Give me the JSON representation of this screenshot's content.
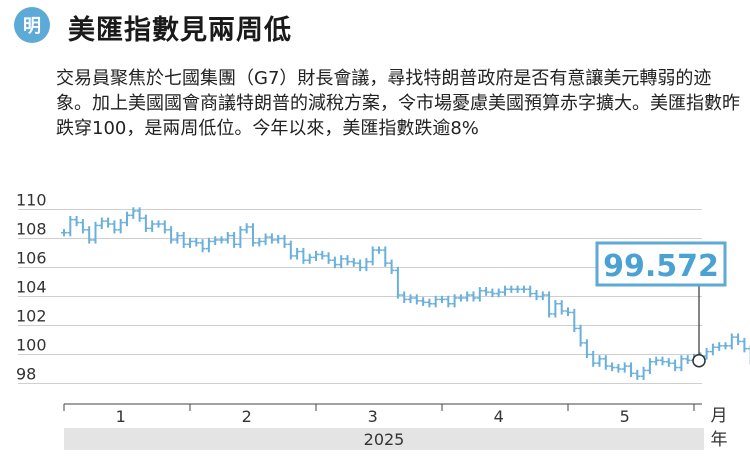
{
  "header": {
    "badge": "明",
    "title": "美匯指數見兩周低"
  },
  "summary": "交易員聚焦於七國集團（G7）財長會議，尋找特朗普政府是否有意讓美元轉弱的迹象。加上美國國會商議特朗普的減稅方案，令市場憂慮美國預算赤字擴大。美匯指數昨跌穿100，是兩周低位。今年以來，美匯指數跌逾8%",
  "colors": {
    "series": "#6ab0dc",
    "callout_border": "#5da9d8",
    "callout_text": "#4aa2d4",
    "year_band": "#e4e4e4",
    "badge": "#5da9d8"
  },
  "chart_data": {
    "type": "line",
    "style": "ohlc-sticks",
    "y_ticks": [
      "110",
      "108",
      "106",
      "104",
      "102",
      "100",
      "98"
    ],
    "ylim": [
      97,
      111
    ],
    "x_ticks": [
      "1",
      "2",
      "3",
      "4",
      "5"
    ],
    "x_unit_top": "月",
    "x_unit_bottom": "年",
    "year_label": "2025",
    "last_value_label": "99.572",
    "last_value": 99.572,
    "x_month": [
      0.05,
      0.1,
      0.15,
      0.2,
      0.25,
      0.3,
      0.35,
      0.4,
      0.45,
      0.5,
      0.55,
      0.6,
      0.65,
      0.7,
      0.75,
      0.8,
      0.85,
      0.9,
      0.95,
      1.0,
      1.05,
      1.1,
      1.15,
      1.2,
      1.25,
      1.3,
      1.35,
      1.4,
      1.45,
      1.5,
      1.55,
      1.6,
      1.65,
      1.7,
      1.75,
      1.8,
      1.85,
      1.9,
      1.95,
      2.0,
      2.05,
      2.1,
      2.15,
      2.2,
      2.25,
      2.3,
      2.35,
      2.4,
      2.45,
      2.5,
      2.55,
      2.6,
      2.65,
      2.7,
      2.75,
      2.8,
      2.85,
      2.9,
      2.95,
      3.0,
      3.05,
      3.1,
      3.15,
      3.2,
      3.25,
      3.3,
      3.35,
      3.4,
      3.45,
      3.5,
      3.55,
      3.6,
      3.65,
      3.7,
      3.75,
      3.8,
      3.85,
      3.9,
      3.95,
      4.0,
      4.05,
      4.1,
      4.15,
      4.2,
      4.25,
      4.3,
      4.35,
      4.4,
      4.45,
      4.5,
      4.55,
      4.6,
      4.65,
      4.7,
      4.75,
      4.8,
      4.85,
      4.9,
      4.95,
      5.0,
      5.05,
      5.1,
      5.15,
      5.2,
      5.25,
      5.3,
      5.35,
      5.4,
      5.45,
      5.5
    ],
    "values": [
      108.4,
      109.3,
      109.1,
      108.6,
      107.9,
      108.9,
      109.2,
      109.0,
      108.6,
      109.1,
      109.6,
      109.9,
      109.4,
      108.7,
      109.0,
      109.0,
      108.6,
      107.9,
      108.2,
      107.6,
      107.8,
      107.7,
      107.3,
      107.8,
      107.9,
      107.9,
      108.2,
      107.6,
      108.6,
      108.8,
      107.7,
      107.8,
      108.1,
      107.9,
      108.0,
      107.6,
      106.8,
      107.1,
      106.5,
      106.7,
      106.9,
      106.8,
      106.5,
      106.2,
      106.6,
      106.4,
      106.3,
      106.0,
      106.4,
      107.2,
      107.2,
      106.3,
      105.8,
      104.1,
      103.8,
      103.9,
      103.7,
      103.6,
      103.5,
      103.8,
      103.8,
      103.5,
      103.9,
      103.9,
      104.1,
      103.9,
      104.4,
      104.3,
      104.2,
      104.3,
      104.5,
      104.5,
      104.5,
      104.5,
      104.2,
      104.0,
      104.1,
      102.8,
      103.5,
      103.0,
      102.9,
      101.8,
      100.8,
      100.0,
      99.4,
      99.7,
      99.2,
      99.1,
      99.0,
      99.2,
      98.7,
      98.5,
      98.9,
      99.5,
      99.6,
      99.5,
      99.4,
      99.1,
      99.7,
      99.6,
      99.8,
      99.9,
      100.2,
      100.5,
      100.6,
      100.6,
      101.2,
      100.9,
      100.4,
      99.572
    ]
  }
}
